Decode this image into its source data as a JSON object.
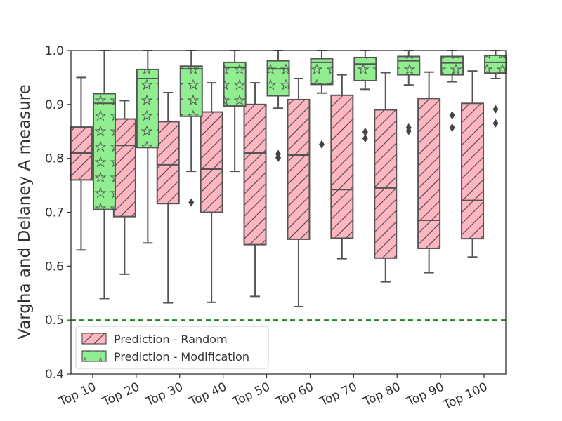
{
  "chart_data": {
    "type": "box",
    "title": "",
    "xlabel": "",
    "ylabel": "Vargha and Delaney A measure",
    "ylim": [
      0.4,
      1.0
    ],
    "yticks": [
      "0.4",
      "0.5",
      "0.6",
      "0.7",
      "0.8",
      "0.9",
      "1.0"
    ],
    "categories": [
      "Top 10",
      "Top 20",
      "Top 30",
      "Top 40",
      "Top 50",
      "Top 60",
      "Top 70",
      "Top 80",
      "Top 90",
      "Top 100"
    ],
    "reference_line": {
      "y": 0.5,
      "color": "#1a8a1a",
      "style": "dashed"
    },
    "legend_position": "lower-left",
    "series": [
      {
        "name": "Prediction - Random",
        "color": "#ffb6c1",
        "hatch": "diagonal",
        "boxes": [
          {
            "min": 0.63,
            "q1": 0.76,
            "median": 0.81,
            "q3": 0.858,
            "max": 0.95,
            "outliers": []
          },
          {
            "min": 0.585,
            "q1": 0.692,
            "median": 0.824,
            "q3": 0.873,
            "max": 0.907,
            "outliers": []
          },
          {
            "min": 0.532,
            "q1": 0.716,
            "median": 0.788,
            "q3": 0.868,
            "max": 0.922,
            "outliers": []
          },
          {
            "min": 0.533,
            "q1": 0.7,
            "median": 0.78,
            "q3": 0.886,
            "max": 0.94,
            "outliers": []
          },
          {
            "min": 0.544,
            "q1": 0.64,
            "median": 0.81,
            "q3": 0.9,
            "max": 0.94,
            "outliers": []
          },
          {
            "min": 0.525,
            "q1": 0.65,
            "median": 0.806,
            "q3": 0.909,
            "max": 0.948,
            "outliers": []
          },
          {
            "min": 0.614,
            "q1": 0.652,
            "median": 0.742,
            "q3": 0.917,
            "max": 0.955,
            "outliers": []
          },
          {
            "min": 0.571,
            "q1": 0.615,
            "median": 0.745,
            "q3": 0.89,
            "max": 0.959,
            "outliers": []
          },
          {
            "min": 0.588,
            "q1": 0.633,
            "median": 0.685,
            "q3": 0.911,
            "max": 0.96,
            "outliers": []
          },
          {
            "min": 0.617,
            "q1": 0.651,
            "median": 0.722,
            "q3": 0.902,
            "max": 0.962,
            "outliers": []
          }
        ]
      },
      {
        "name": "Prediction - Modification",
        "color": "#90ee90",
        "hatch": "stars",
        "boxes": [
          {
            "min": 0.54,
            "q1": 0.705,
            "median": 0.902,
            "q3": 0.92,
            "max": 1.0,
            "outliers": []
          },
          {
            "min": 0.643,
            "q1": 0.82,
            "median": 0.948,
            "q3": 0.965,
            "max": 1.0,
            "outliers": []
          },
          {
            "min": 0.776,
            "q1": 0.878,
            "median": 0.966,
            "q3": 0.971,
            "max": 1.0,
            "outliers": [
              0.718
            ]
          },
          {
            "min": 0.776,
            "q1": 0.897,
            "median": 0.969,
            "q3": 0.978,
            "max": 1.0,
            "outliers": []
          },
          {
            "min": 0.893,
            "q1": 0.916,
            "median": 0.966,
            "q3": 0.981,
            "max": 1.0,
            "outliers": [
              0.801,
              0.808
            ]
          },
          {
            "min": 0.921,
            "q1": 0.937,
            "median": 0.978,
            "q3": 0.985,
            "max": 1.0,
            "outliers": [
              0.826
            ]
          },
          {
            "min": 0.928,
            "q1": 0.944,
            "median": 0.975,
            "q3": 0.987,
            "max": 1.0,
            "outliers": [
              0.837,
              0.849
            ]
          },
          {
            "min": 0.936,
            "q1": 0.955,
            "median": 0.981,
            "q3": 0.989,
            "max": 1.0,
            "outliers": [
              0.851,
              0.857
            ]
          },
          {
            "min": 0.942,
            "q1": 0.955,
            "median": 0.977,
            "q3": 0.989,
            "max": 1.0,
            "outliers": [
              0.857,
              0.88
            ]
          },
          {
            "min": 0.948,
            "q1": 0.958,
            "median": 0.978,
            "q3": 0.991,
            "max": 1.0,
            "outliers": [
              0.865,
              0.891
            ]
          }
        ]
      }
    ]
  }
}
